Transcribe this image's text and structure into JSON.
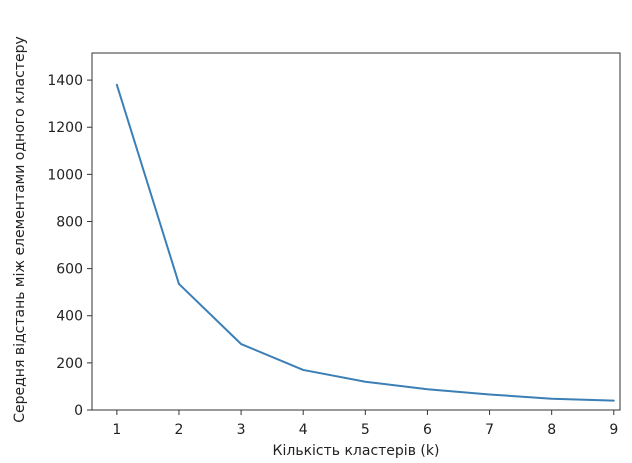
{
  "chart_data": {
    "type": "line",
    "title": "",
    "xlabel": "Кількість кластерів (k)",
    "ylabel": "Середня відстань між елементами одного кластеру",
    "x": [
      1,
      2,
      3,
      4,
      5,
      6,
      7,
      8,
      9
    ],
    "series": [
      {
        "values": [
          1380,
          535,
          280,
          170,
          120,
          88,
          66,
          48,
          40
        ],
        "color": "#3b7fb6"
      }
    ],
    "xticks": [
      1,
      2,
      3,
      4,
      5,
      6,
      7,
      8,
      9
    ],
    "yticks": [
      0,
      200,
      400,
      600,
      800,
      1000,
      1200,
      1400
    ],
    "xlim": [
      0.6,
      9.1
    ],
    "ylim": [
      0,
      1515
    ],
    "grid": false,
    "legend": "none"
  }
}
